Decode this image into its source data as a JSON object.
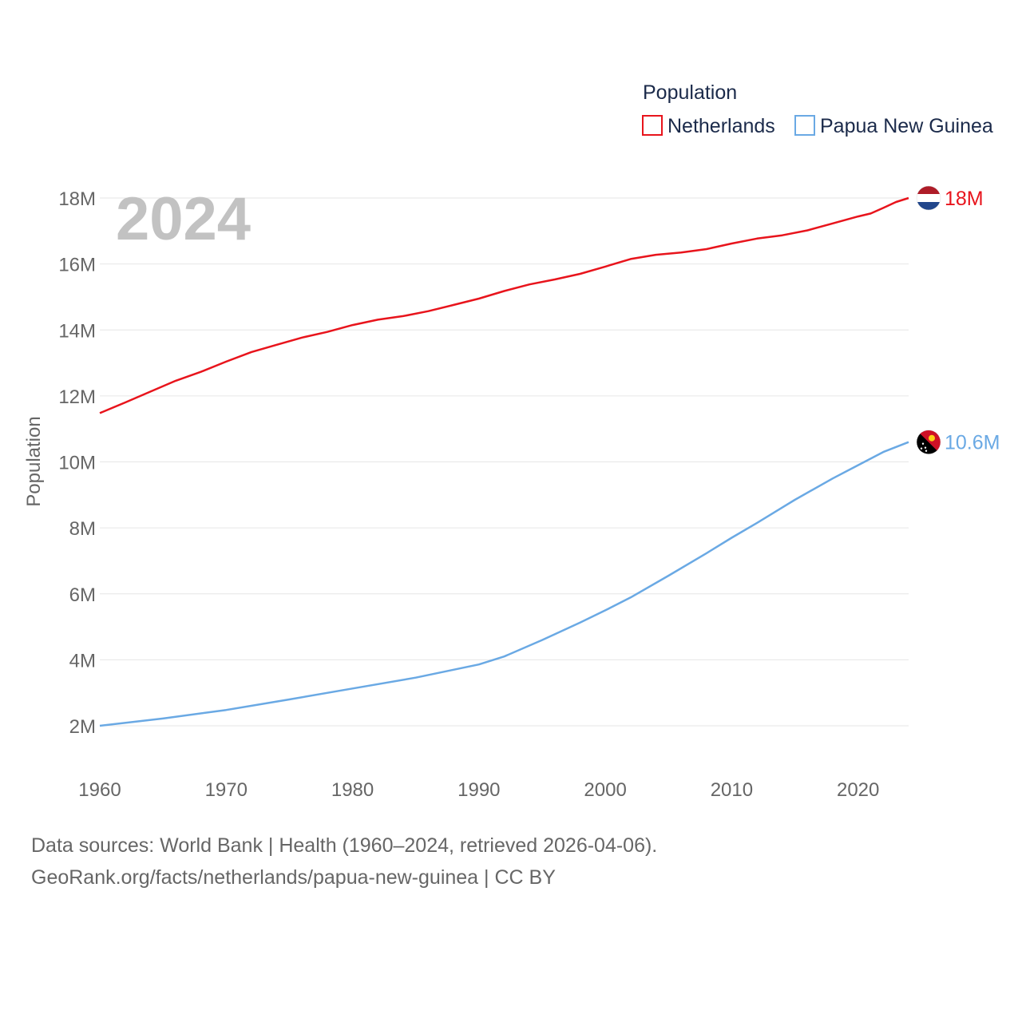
{
  "chart_data": {
    "type": "line",
    "title": "",
    "year_label": "2024",
    "legend_title": "Population",
    "legend_position": "top-right",
    "ylabel": "Population",
    "xlabel": "",
    "xlim": [
      1960,
      2024
    ],
    "ylim": [
      1000000,
      19000000
    ],
    "x_ticks": [
      1960,
      1970,
      1980,
      1990,
      2000,
      2010,
      2020
    ],
    "y_ticks": [
      {
        "value": 2000000,
        "label": "2M"
      },
      {
        "value": 4000000,
        "label": "4M"
      },
      {
        "value": 6000000,
        "label": "6M"
      },
      {
        "value": 8000000,
        "label": "8M"
      },
      {
        "value": 10000000,
        "label": "10M"
      },
      {
        "value": 12000000,
        "label": "12M"
      },
      {
        "value": 14000000,
        "label": "14M"
      },
      {
        "value": 16000000,
        "label": "16M"
      },
      {
        "value": 18000000,
        "label": "18M"
      }
    ],
    "grid": true,
    "series": [
      {
        "name": "Netherlands",
        "color": "#e8141c",
        "end_label": "18M",
        "flag": "netherlands-flag",
        "points": [
          [
            1960,
            11480000
          ],
          [
            1962,
            11800000
          ],
          [
            1964,
            12130000
          ],
          [
            1966,
            12460000
          ],
          [
            1968,
            12730000
          ],
          [
            1970,
            13040000
          ],
          [
            1972,
            13330000
          ],
          [
            1974,
            13550000
          ],
          [
            1976,
            13770000
          ],
          [
            1978,
            13940000
          ],
          [
            1980,
            14150000
          ],
          [
            1982,
            14310000
          ],
          [
            1984,
            14420000
          ],
          [
            1986,
            14570000
          ],
          [
            1988,
            14760000
          ],
          [
            1990,
            14950000
          ],
          [
            1992,
            15180000
          ],
          [
            1994,
            15380000
          ],
          [
            1996,
            15530000
          ],
          [
            1998,
            15700000
          ],
          [
            2000,
            15920000
          ],
          [
            2002,
            16150000
          ],
          [
            2004,
            16280000
          ],
          [
            2006,
            16350000
          ],
          [
            2008,
            16450000
          ],
          [
            2010,
            16620000
          ],
          [
            2012,
            16770000
          ],
          [
            2014,
            16870000
          ],
          [
            2016,
            17020000
          ],
          [
            2018,
            17230000
          ],
          [
            2020,
            17440000
          ],
          [
            2021,
            17530000
          ],
          [
            2022,
            17700000
          ],
          [
            2023,
            17880000
          ],
          [
            2024,
            18000000
          ]
        ]
      },
      {
        "name": "Papua New Guinea",
        "color": "#6aa9e4",
        "end_label": "10.6M",
        "flag": "papua-new-guinea-flag",
        "points": [
          [
            1960,
            2000000
          ],
          [
            1965,
            2220000
          ],
          [
            1970,
            2480000
          ],
          [
            1975,
            2800000
          ],
          [
            1980,
            3130000
          ],
          [
            1985,
            3460000
          ],
          [
            1990,
            3860000
          ],
          [
            1992,
            4100000
          ],
          [
            1995,
            4600000
          ],
          [
            1998,
            5130000
          ],
          [
            2000,
            5500000
          ],
          [
            2002,
            5890000
          ],
          [
            2005,
            6550000
          ],
          [
            2008,
            7230000
          ],
          [
            2010,
            7700000
          ],
          [
            2012,
            8150000
          ],
          [
            2015,
            8850000
          ],
          [
            2018,
            9500000
          ],
          [
            2020,
            9900000
          ],
          [
            2022,
            10300000
          ],
          [
            2024,
            10600000
          ]
        ]
      }
    ]
  },
  "footer": {
    "line1": "Data sources: World Bank | Health (1960–2024, retrieved 2026-04-06).",
    "line2": "GeoRank.org/facts/netherlands/papua-new-guinea | CC BY"
  }
}
